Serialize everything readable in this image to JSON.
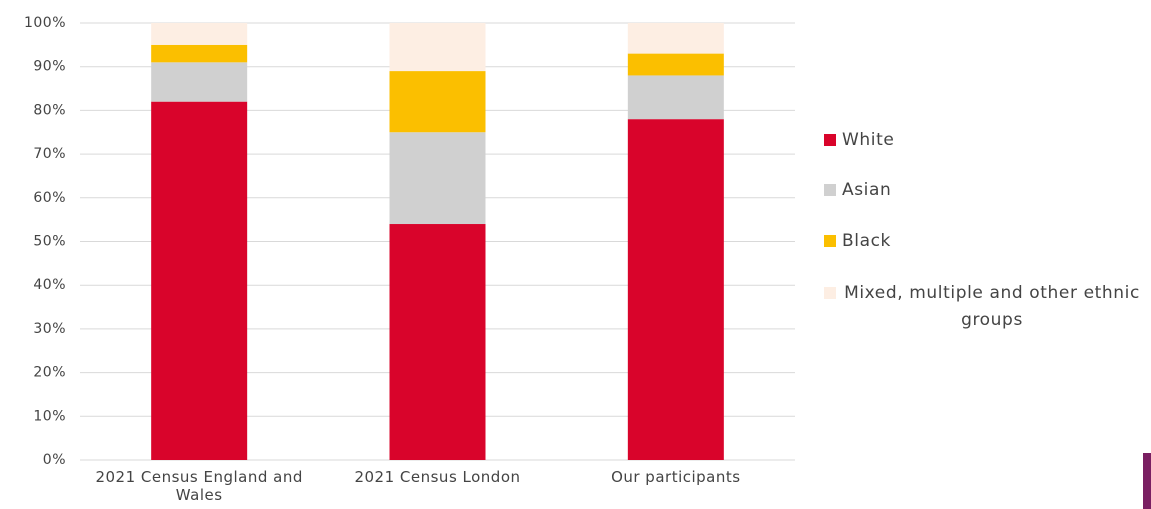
{
  "chart_data": {
    "type": "stacked_bar",
    "categories": [
      "2021 Census England and Wales",
      "2021 Census London",
      "Our participants"
    ],
    "series": [
      {
        "name": "White",
        "color": "#d9042b",
        "values": [
          82,
          54,
          78
        ]
      },
      {
        "name": "Asian",
        "color": "#d0d0d0",
        "values": [
          9,
          21,
          10
        ]
      },
      {
        "name": "Black",
        "color": "#fbbf00",
        "values": [
          4,
          14,
          5
        ]
      },
      {
        "name": "Mixed, multiple and other ethnic groups",
        "color": "#fdeee3",
        "values": [
          5,
          11,
          7
        ]
      }
    ],
    "ylim": [
      0,
      100
    ],
    "yticks": [
      {
        "value": 0,
        "label": "0%"
      },
      {
        "value": 10,
        "label": "10%"
      },
      {
        "value": 20,
        "label": "20%"
      },
      {
        "value": 30,
        "label": "30%"
      },
      {
        "value": 40,
        "label": "40%"
      },
      {
        "value": 50,
        "label": "50%"
      },
      {
        "value": 60,
        "label": "60%"
      },
      {
        "value": 70,
        "label": "70%"
      },
      {
        "value": 80,
        "label": "80%"
      },
      {
        "value": 90,
        "label": "90%"
      },
      {
        "value": 100,
        "label": "100%"
      }
    ],
    "grid": true,
    "legend": "right"
  }
}
